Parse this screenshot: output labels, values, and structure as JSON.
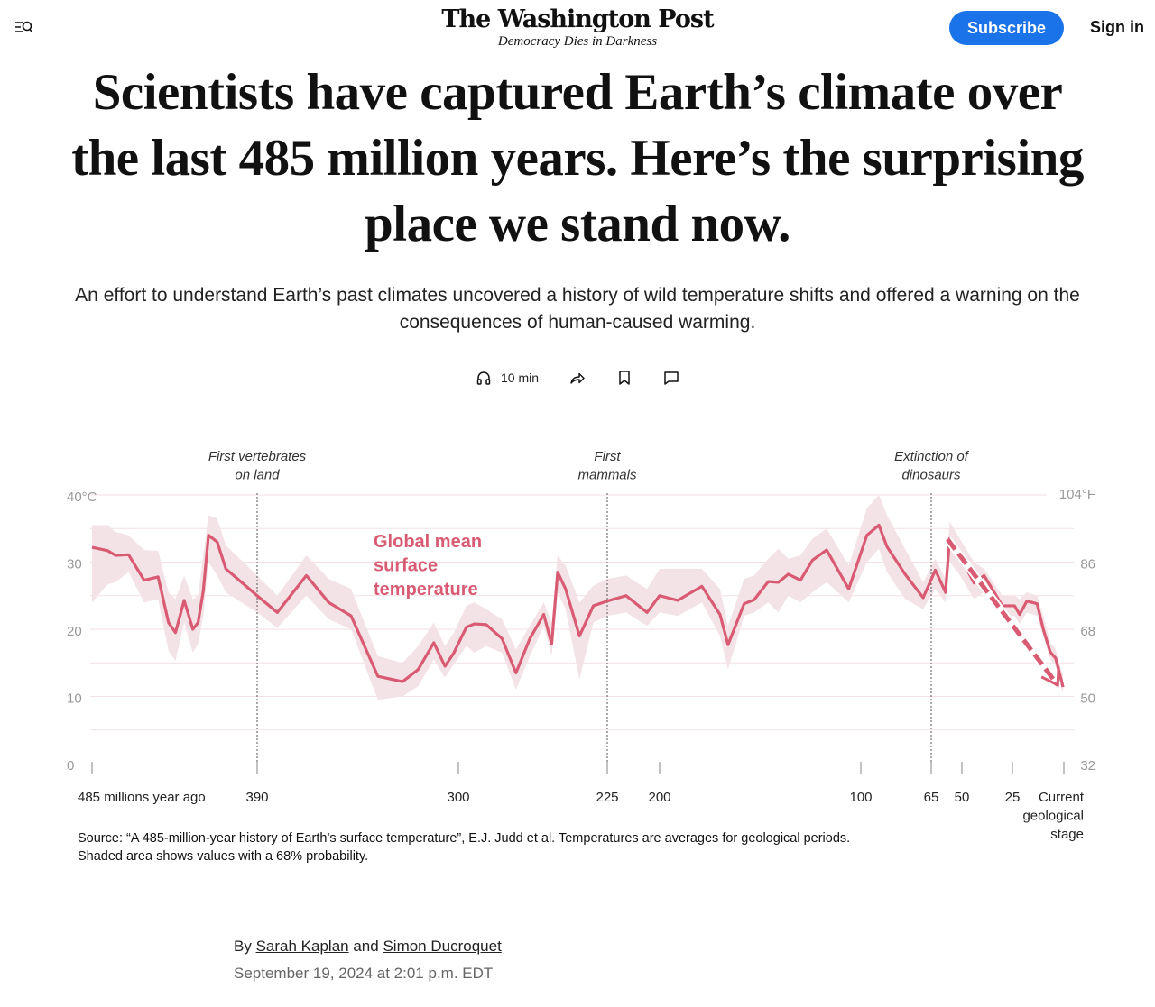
{
  "header": {
    "logo": "The Washington Post",
    "tagline": "Democracy Dies in Darkness",
    "subscribe_label": "Subscribe",
    "signin_label": "Sign in",
    "menu_icon": "menu-search-icon"
  },
  "article": {
    "headline": "Scientists have captured Earth’s climate over the last 485 million years. Here’s the surprising place we stand now.",
    "dek": "An effort to understand Earth’s past climates uncovered a history of wild temperature shifts and offered a warning on the consequences of human-caused warming.",
    "actions": {
      "listen_label": "10 min",
      "listen_icon": "headphones-icon",
      "share_icon": "share-icon",
      "save_icon": "bookmark-icon",
      "comment_icon": "comment-icon"
    },
    "source": "Source: “A 485-million-year history of Earth’s surface temperature”, E.J. Judd et al. Temperatures are averages for geological periods. Shaded area shows values with a 68% probability.",
    "byline_prefix": "By",
    "byline_and": "and",
    "authors": [
      "Sarah Kaplan",
      "Simon Ducroquet"
    ],
    "date": "September 19, 2024 at 2:01 p.m. EDT"
  },
  "chart_data": {
    "type": "line",
    "series_label": "Global mean surface temperature",
    "color": "#d95b73",
    "band_color": "#f3e3e7",
    "x_ticks": [
      {
        "value": 485,
        "label": "485 millions year ago"
      },
      {
        "value": 390,
        "label": "390"
      },
      {
        "value": 300,
        "label": "300"
      },
      {
        "value": 225,
        "label": "225"
      },
      {
        "value": 200,
        "label": "200"
      },
      {
        "value": 100,
        "label": "100"
      },
      {
        "value": 65,
        "label": "65"
      },
      {
        "value": 50,
        "label": "50"
      },
      {
        "value": 25,
        "label": "25"
      },
      {
        "value": 0,
        "label": "Current geological stage"
      }
    ],
    "x_scale": "geological stages (non-linear), millions of years ago, reversed",
    "y_left": {
      "ticks": [
        0,
        10,
        20,
        30,
        40
      ],
      "labels": [
        "0",
        "10",
        "20",
        "30",
        "40°C"
      ],
      "range": [
        0,
        40
      ]
    },
    "y_right": {
      "ticks": [
        0,
        10,
        20,
        30,
        40
      ],
      "labels": [
        "32",
        "50",
        "68",
        "86",
        "104°F"
      ]
    },
    "grid": true,
    "annotations": [
      {
        "age": 390,
        "label": "First vertebrates\non land"
      },
      {
        "age": 225,
        "label": "First\nmammals"
      },
      {
        "age": 65,
        "label": "Extinction of\ndinosaurs"
      }
    ],
    "trend_arrow": {
      "from": {
        "age": 57,
        "temp": 33.4
      },
      "to": {
        "age": 3,
        "temp": 11.7
      },
      "style": "dashed"
    },
    "ages": [
      485,
      476,
      471.5,
      464,
      455,
      447,
      441,
      437,
      432,
      427,
      424,
      421,
      418,
      413,
      408,
      390,
      381,
      368,
      358,
      348,
      336,
      325,
      318,
      311,
      306,
      302,
      296,
      292,
      286,
      278,
      271,
      264,
      257,
      253,
      250,
      246,
      239,
      232,
      225,
      216,
      206,
      200,
      191,
      179,
      170,
      166,
      158,
      153,
      146,
      141,
      136,
      130,
      124,
      117,
      106,
      97,
      91,
      87,
      78,
      69,
      63,
      58,
      56,
      52,
      44,
      39,
      30,
      24,
      21.5,
      18,
      13,
      10,
      6.6,
      4,
      0.4
    ],
    "temps": [
      32.2,
      31.7,
      31,
      31.1,
      27.3,
      27.8,
      21,
      19.5,
      24.3,
      20,
      21,
      25.7,
      34,
      33,
      29,
      25,
      22.5,
      28,
      24,
      22,
      13,
      12.2,
      14,
      18,
      14.5,
      16.5,
      20.3,
      20.8,
      20.7,
      18.6,
      13.5,
      18.6,
      22.2,
      17.8,
      28.5,
      26,
      19,
      23.5,
      24.2,
      25,
      22.5,
      25,
      24.3,
      26.4,
      22.2,
      17.7,
      23.8,
      24.4,
      27.1,
      27,
      28.2,
      27.3,
      30.3,
      31.8,
      26,
      34,
      35.5,
      32.3,
      28.2,
      24.7,
      28.8,
      25.5,
      33.5,
      31.5,
      26.9,
      28,
      23.5,
      23.5,
      22.2,
      24.2,
      23.8,
      20,
      16.6,
      15.7,
      11.4
    ],
    "upper": [
      35.5,
      35.5,
      34.5,
      34,
      31.8,
      31.7,
      25.5,
      24.5,
      28,
      24.5,
      25,
      31,
      37,
      36.5,
      32.5,
      28,
      25,
      31,
      27.5,
      26,
      16,
      15,
      17.5,
      21,
      17.5,
      19.5,
      23.5,
      24,
      23,
      21.5,
      17,
      20.5,
      24,
      21,
      31,
      29.5,
      24,
      26.5,
      27.5,
      28,
      26,
      29,
      29,
      29,
      26,
      20.5,
      27.5,
      28,
      30.5,
      32,
      30.5,
      31,
      33.5,
      35,
      29.5,
      38,
      40,
      37,
      32,
      27,
      30.5,
      27.5,
      36,
      34,
      30,
      29,
      25,
      25,
      24.5,
      25.5,
      25,
      22,
      18,
      17,
      13
    ],
    "lower": [
      24,
      26.7,
      27,
      28.5,
      24,
      24.5,
      16.8,
      15.3,
      21,
      16.5,
      17.8,
      22,
      30,
      28,
      25.5,
      22.5,
      20.2,
      25,
      21.5,
      20,
      9.5,
      10,
      11.5,
      15.5,
      12.8,
      14.8,
      17.5,
      16.5,
      17.5,
      16.5,
      11,
      16,
      20.5,
      16,
      25.5,
      23,
      12.5,
      21,
      22,
      22.5,
      20.5,
      22.5,
      22,
      24,
      19,
      14,
      22,
      22.5,
      24,
      22.5,
      25,
      24,
      25.5,
      27,
      24,
      30,
      32,
      28.5,
      24.5,
      23,
      26,
      24,
      30,
      28.5,
      24.5,
      25.5,
      22,
      22,
      20.8,
      22.5,
      22,
      19,
      15.5,
      14.5,
      10.5
    ]
  }
}
